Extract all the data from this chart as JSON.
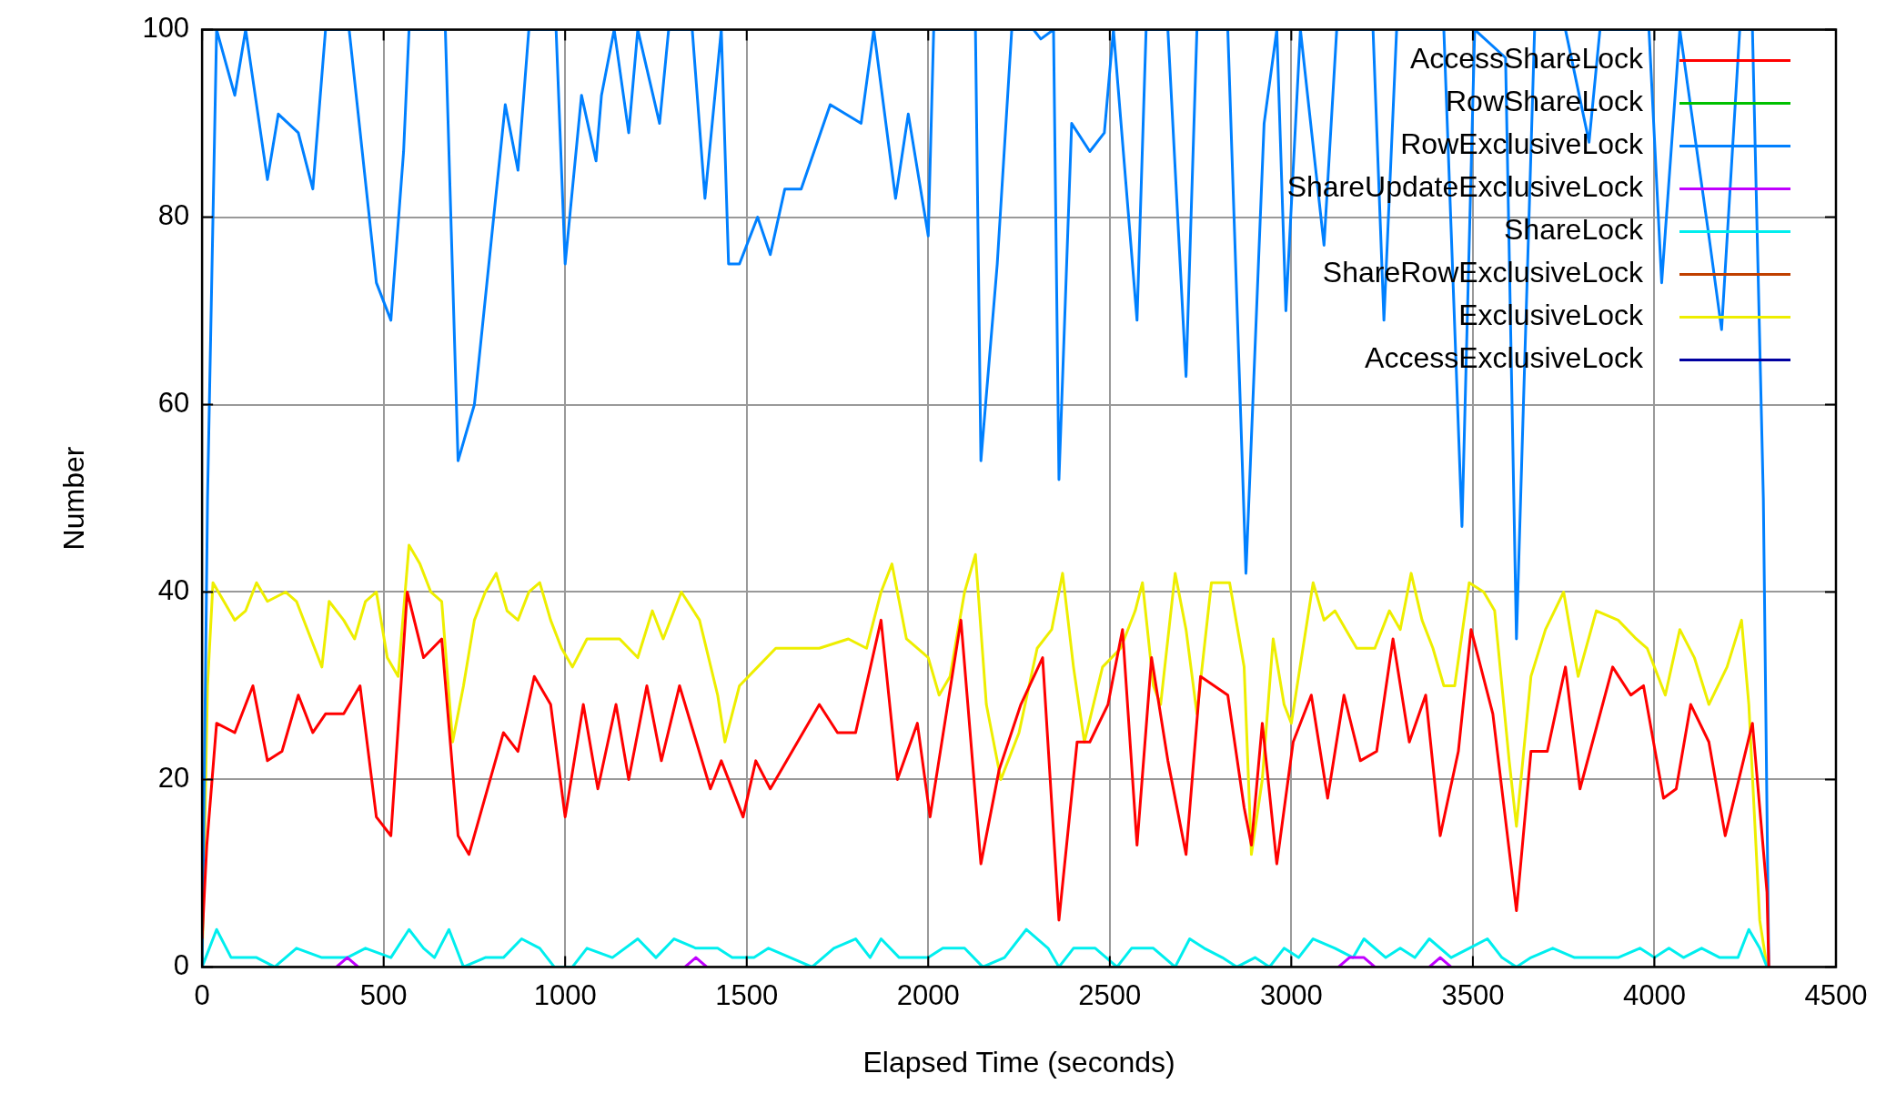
{
  "chart_data": {
    "type": "line",
    "xlabel": "Elapsed Time (seconds)",
    "ylabel": "Number",
    "xlim": [
      0,
      4500
    ],
    "xticks": [
      0,
      500,
      1000,
      1500,
      2000,
      2500,
      3000,
      3500,
      4000,
      4500
    ],
    "ylim": [
      0,
      100
    ],
    "yticks": [
      0,
      20,
      40,
      60,
      80,
      100
    ],
    "grid": true,
    "legend": "top right",
    "marker": "none",
    "line_style": "solid",
    "series": [
      {
        "name": "AccessShareLock",
        "color": "#ff0000",
        "x": [
          0,
          13,
          40,
          90,
          140,
          180,
          220,
          265,
          305,
          340,
          390,
          435,
          480,
          520,
          565,
          610,
          660,
          705,
          735,
          830,
          870,
          915,
          960,
          1000,
          1050,
          1090,
          1140,
          1175,
          1225,
          1265,
          1315,
          1400,
          1430,
          1490,
          1525,
          1565,
          1700,
          1750,
          1800,
          1870,
          1915,
          1970,
          2005,
          2090,
          2145,
          2195,
          2255,
          2315,
          2360,
          2410,
          2445,
          2495,
          2535,
          2575,
          2615,
          2660,
          2710,
          2750,
          2825,
          2870,
          2890,
          2920,
          2960,
          3005,
          3055,
          3100,
          3145,
          3190,
          3235,
          3280,
          3325,
          3370,
          3410,
          3460,
          3495,
          3555,
          3620,
          3660,
          3705,
          3755,
          3795,
          3885,
          3935,
          3970,
          4025,
          4060,
          4100,
          4150,
          4195,
          4270,
          4290,
          4310,
          4315
        ],
        "values": [
          3,
          13,
          26,
          25,
          30,
          22,
          23,
          29,
          25,
          27,
          27,
          30,
          16,
          14,
          40,
          33,
          35,
          14,
          12,
          25,
          23,
          31,
          28,
          16,
          28,
          19,
          28,
          20,
          30,
          22,
          30,
          19,
          22,
          16,
          22,
          19,
          28,
          25,
          25,
          37,
          20,
          26,
          16,
          37,
          11,
          21,
          28,
          33,
          5,
          24,
          24,
          28,
          36,
          13,
          33,
          22,
          12,
          31,
          29,
          17,
          13,
          26,
          11,
          24,
          29,
          18,
          29,
          22,
          23,
          35,
          24,
          29,
          14,
          23,
          36,
          27,
          6,
          23,
          23,
          32,
          19,
          32,
          29,
          30,
          18,
          19,
          28,
          24,
          14,
          26,
          17,
          8,
          0
        ]
      },
      {
        "name": "RowShareLock",
        "color": "#00c000"
      },
      {
        "name": "RowExclusiveLock",
        "color": "#0080ff",
        "x": [
          0,
          15,
          40,
          90,
          120,
          180,
          210,
          265,
          305,
          340,
          405,
          480,
          520,
          555,
          570,
          670,
          705,
          750,
          835,
          870,
          900,
          975,
          1000,
          1045,
          1085,
          1100,
          1135,
          1175,
          1200,
          1260,
          1285,
          1350,
          1385,
          1430,
          1450,
          1480,
          1530,
          1565,
          1605,
          1650,
          1730,
          1815,
          1850,
          1910,
          1945,
          2000,
          2015,
          2130,
          2145,
          2190,
          2230,
          2290,
          2310,
          2345,
          2360,
          2395,
          2445,
          2485,
          2510,
          2575,
          2600,
          2660,
          2710,
          2740,
          2825,
          2875,
          2925,
          2960,
          2985,
          3025,
          3090,
          3125,
          3225,
          3255,
          3290,
          3420,
          3470,
          3505,
          3590,
          3620,
          3670,
          3755,
          3820,
          3850,
          3985,
          4020,
          4070,
          4150,
          4185,
          4235,
          4270,
          4300,
          4315
        ],
        "values": [
          0,
          50,
          100,
          93,
          100,
          84,
          91,
          89,
          83,
          100,
          100,
          73,
          69,
          87,
          100,
          100,
          54,
          60,
          92,
          85,
          100,
          100,
          75,
          93,
          86,
          93,
          100,
          89,
          100,
          90,
          100,
          100,
          82,
          100,
          75,
          75,
          80,
          76,
          83,
          83,
          92,
          90,
          100,
          82,
          91,
          78,
          100,
          100,
          54,
          75,
          100,
          100,
          99,
          100,
          52,
          90,
          87,
          89,
          100,
          69,
          100,
          100,
          63,
          100,
          100,
          42,
          90,
          100,
          70,
          100,
          77,
          100,
          100,
          69,
          100,
          100,
          47,
          100,
          97,
          35,
          100,
          100,
          88,
          100,
          100,
          73,
          100,
          78,
          68,
          100,
          100,
          50,
          0
        ]
      },
      {
        "name": "ShareUpdateExclusiveLock",
        "color": "#c000ff",
        "x": [
          370,
          400,
          430,
          880,
          1330,
          1360,
          1390,
          2260,
          3130,
          3160,
          3200,
          3230,
          3300,
          3380,
          3410,
          3440
        ],
        "values": [
          0,
          1,
          0,
          null,
          0,
          1,
          0,
          null,
          0,
          1,
          1,
          0,
          null,
          0,
          1,
          0
        ]
      },
      {
        "name": "ShareLock",
        "color": "#00eeee",
        "x": [
          0,
          40,
          80,
          150,
          200,
          260,
          330,
          400,
          450,
          520,
          570,
          610,
          640,
          680,
          720,
          780,
          830,
          880,
          930,
          970,
          1020,
          1060,
          1130,
          1200,
          1250,
          1300,
          1360,
          1420,
          1460,
          1520,
          1560,
          1620,
          1680,
          1740,
          1800,
          1840,
          1870,
          1920,
          1960,
          2000,
          2040,
          2100,
          2150,
          2210,
          2270,
          2330,
          2360,
          2400,
          2460,
          2520,
          2560,
          2620,
          2680,
          2720,
          2760,
          2810,
          2850,
          2900,
          2940,
          2980,
          3020,
          3060,
          3120,
          3170,
          3200,
          3260,
          3300,
          3340,
          3380,
          3440,
          3490,
          3540,
          3580,
          3620,
          3660,
          3720,
          3780,
          3840,
          3900,
          3960,
          4000,
          4040,
          4080,
          4130,
          4180,
          4230,
          4260,
          4290,
          4310
        ],
        "values": [
          0,
          4,
          1,
          1,
          0,
          2,
          1,
          1,
          2,
          1,
          4,
          2,
          1,
          4,
          0,
          1,
          1,
          3,
          2,
          0,
          0,
          2,
          1,
          3,
          1,
          3,
          2,
          2,
          1,
          1,
          2,
          1,
          0,
          2,
          3,
          1,
          3,
          1,
          1,
          1,
          2,
          2,
          0,
          1,
          4,
          2,
          0,
          2,
          2,
          0,
          2,
          2,
          0,
          3,
          2,
          1,
          0,
          1,
          0,
          2,
          1,
          3,
          2,
          1,
          3,
          1,
          2,
          1,
          3,
          1,
          2,
          3,
          1,
          0,
          1,
          2,
          1,
          1,
          1,
          2,
          1,
          2,
          1,
          2,
          1,
          1,
          4,
          2,
          0
        ]
      },
      {
        "name": "ShareRowExclusiveLock",
        "color": "#c04000"
      },
      {
        "name": "ExclusiveLock",
        "color": "#eeee00",
        "x": [
          0,
          15,
          30,
          60,
          90,
          120,
          150,
          180,
          230,
          260,
          300,
          330,
          350,
          390,
          420,
          450,
          480,
          510,
          540,
          570,
          600,
          630,
          660,
          690,
          720,
          750,
          780,
          810,
          840,
          870,
          900,
          930,
          960,
          990,
          1020,
          1060,
          1100,
          1150,
          1200,
          1240,
          1270,
          1300,
          1320,
          1370,
          1420,
          1440,
          1480,
          1530,
          1580,
          1650,
          1700,
          1780,
          1830,
          1870,
          1900,
          1940,
          2000,
          2030,
          2060,
          2100,
          2130,
          2160,
          2200,
          2250,
          2300,
          2340,
          2370,
          2400,
          2430,
          2480,
          2530,
          2570,
          2590,
          2620,
          2640,
          2680,
          2710,
          2740,
          2780,
          2830,
          2870,
          2890,
          2920,
          2950,
          2980,
          3000,
          3060,
          3090,
          3120,
          3150,
          3180,
          3230,
          3270,
          3300,
          3330,
          3360,
          3390,
          3420,
          3450,
          3490,
          3530,
          3560,
          3600,
          3620,
          3660,
          3700,
          3750,
          3790,
          3840,
          3900,
          3950,
          3980,
          4030,
          4070,
          4110,
          4150,
          4200,
          4240,
          4260,
          4290,
          4310
        ],
        "values": [
          0,
          30,
          41,
          39,
          37,
          38,
          41,
          39,
          40,
          39,
          35,
          32,
          39,
          37,
          35,
          39,
          40,
          33,
          31,
          45,
          43,
          40,
          39,
          24,
          30,
          37,
          40,
          42,
          38,
          37,
          40,
          41,
          37,
          34,
          32,
          35,
          35,
          35,
          33,
          38,
          35,
          38,
          40,
          37,
          29,
          24,
          30,
          32,
          34,
          34,
          34,
          35,
          34,
          40,
          43,
          35,
          33,
          29,
          31,
          40,
          44,
          28,
          20,
          25,
          34,
          36,
          42,
          32,
          24,
          32,
          34,
          38,
          41,
          30,
          28,
          42,
          36,
          27,
          41,
          41,
          32,
          12,
          20,
          35,
          28,
          26,
          41,
          37,
          38,
          36,
          34,
          34,
          38,
          36,
          42,
          37,
          34,
          30,
          30,
          41,
          40,
          38,
          22,
          15,
          31,
          36,
          40,
          31,
          38,
          37,
          35,
          34,
          29,
          36,
          33,
          28,
          32,
          37,
          28,
          5,
          0
        ]
      },
      {
        "name": "AccessExclusiveLock",
        "color": "#0000a0"
      }
    ]
  }
}
